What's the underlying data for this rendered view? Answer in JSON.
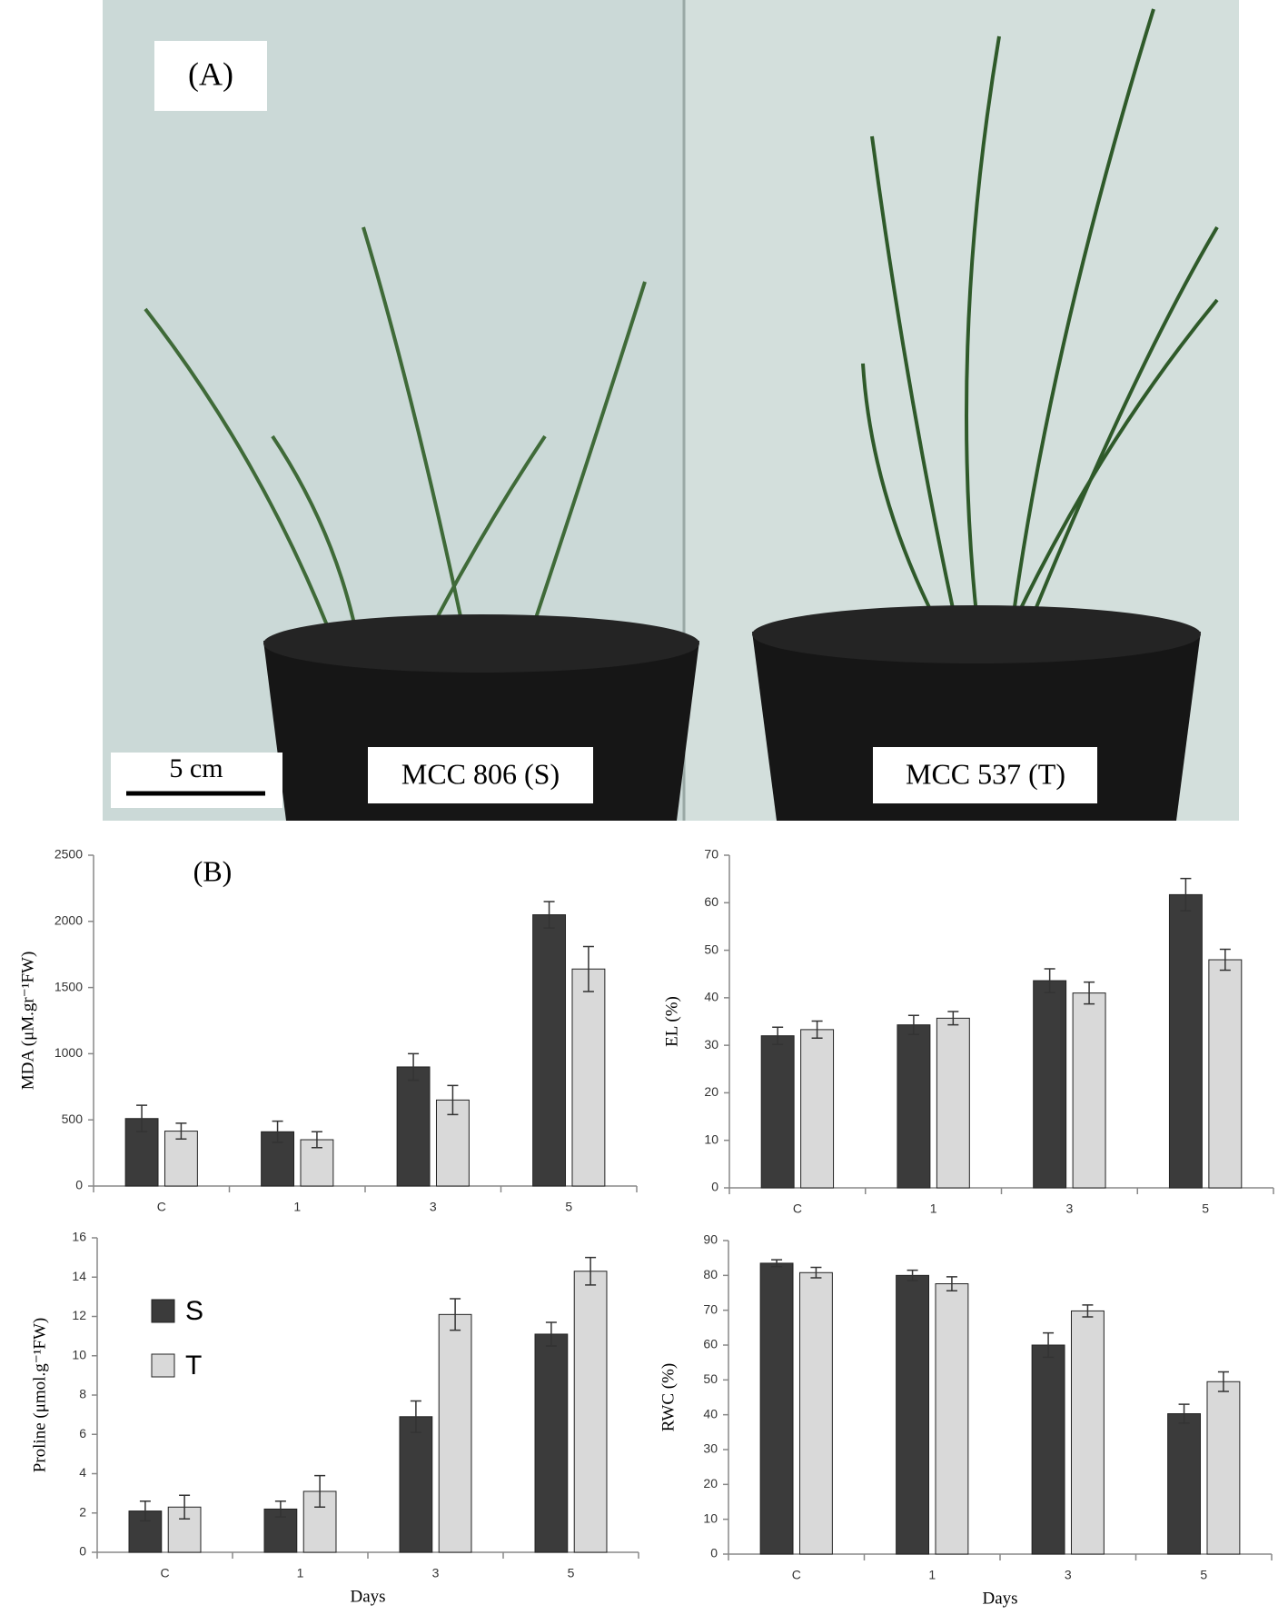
{
  "panel_a": {
    "label": "(A)",
    "scale_bar": "5 cm",
    "left_pot": "MCC 806 (S)",
    "right_pot": "MCC 537 (T)"
  },
  "chart_data": [
    {
      "type": "bar",
      "annotation": "(B)",
      "ylabel": "MDA (μM.gr⁻¹FW)",
      "categories": [
        "C",
        "1",
        "3",
        "5"
      ],
      "ylim": [
        0,
        2500
      ],
      "yticks": [
        0,
        500,
        1000,
        1500,
        2000,
        2500
      ],
      "series": [
        {
          "name": "S",
          "color": "#3b3b3b",
          "values": [
            510,
            410,
            900,
            2050
          ],
          "errors": [
            100,
            80,
            100,
            100
          ]
        },
        {
          "name": "T",
          "color": "#d9d9d9",
          "values": [
            415,
            350,
            650,
            1640
          ],
          "errors": [
            60,
            60,
            110,
            170
          ]
        }
      ]
    },
    {
      "type": "bar",
      "ylabel": "EL (%)",
      "categories": [
        "C",
        "1",
        "3",
        "5"
      ],
      "ylim": [
        0,
        70
      ],
      "yticks": [
        0,
        10,
        20,
        30,
        40,
        50,
        60,
        70
      ],
      "series": [
        {
          "name": "S",
          "color": "#3b3b3b",
          "values": [
            32,
            34.3,
            43.6,
            61.7
          ],
          "errors": [
            1.8,
            2,
            2.5,
            3.4
          ]
        },
        {
          "name": "T",
          "color": "#d9d9d9",
          "values": [
            33.3,
            35.7,
            41,
            48
          ],
          "errors": [
            1.8,
            1.4,
            2.3,
            2.2
          ]
        }
      ]
    },
    {
      "type": "bar",
      "ylabel": "Proline (μmol.g⁻¹FW)",
      "xlabel": "Days",
      "legend": "upper left",
      "categories": [
        "C",
        "1",
        "3",
        "5"
      ],
      "ylim": [
        0,
        16
      ],
      "yticks": [
        0,
        2,
        4,
        6,
        8,
        10,
        12,
        14,
        16
      ],
      "series": [
        {
          "name": "S",
          "color": "#3b3b3b",
          "values": [
            2.1,
            2.2,
            6.9,
            11.1
          ],
          "errors": [
            0.5,
            0.4,
            0.8,
            0.6
          ]
        },
        {
          "name": "T",
          "color": "#d9d9d9",
          "values": [
            2.3,
            3.1,
            12.1,
            14.3
          ],
          "errors": [
            0.6,
            0.8,
            0.8,
            0.7
          ]
        }
      ]
    },
    {
      "type": "bar",
      "ylabel": "RWC (%)",
      "xlabel": "Days",
      "categories": [
        "C",
        "1",
        "3",
        "5"
      ],
      "ylim": [
        0,
        90
      ],
      "yticks": [
        0,
        10,
        20,
        30,
        40,
        50,
        60,
        70,
        80,
        90
      ],
      "series": [
        {
          "name": "S",
          "color": "#3b3b3b",
          "values": [
            83.5,
            80,
            60,
            40.3
          ],
          "errors": [
            1,
            1.5,
            3.5,
            2.7
          ]
        },
        {
          "name": "T",
          "color": "#d9d9d9",
          "values": [
            80.8,
            77.6,
            69.8,
            49.5
          ],
          "errors": [
            1.5,
            2,
            1.7,
            2.8
          ]
        }
      ]
    }
  ]
}
